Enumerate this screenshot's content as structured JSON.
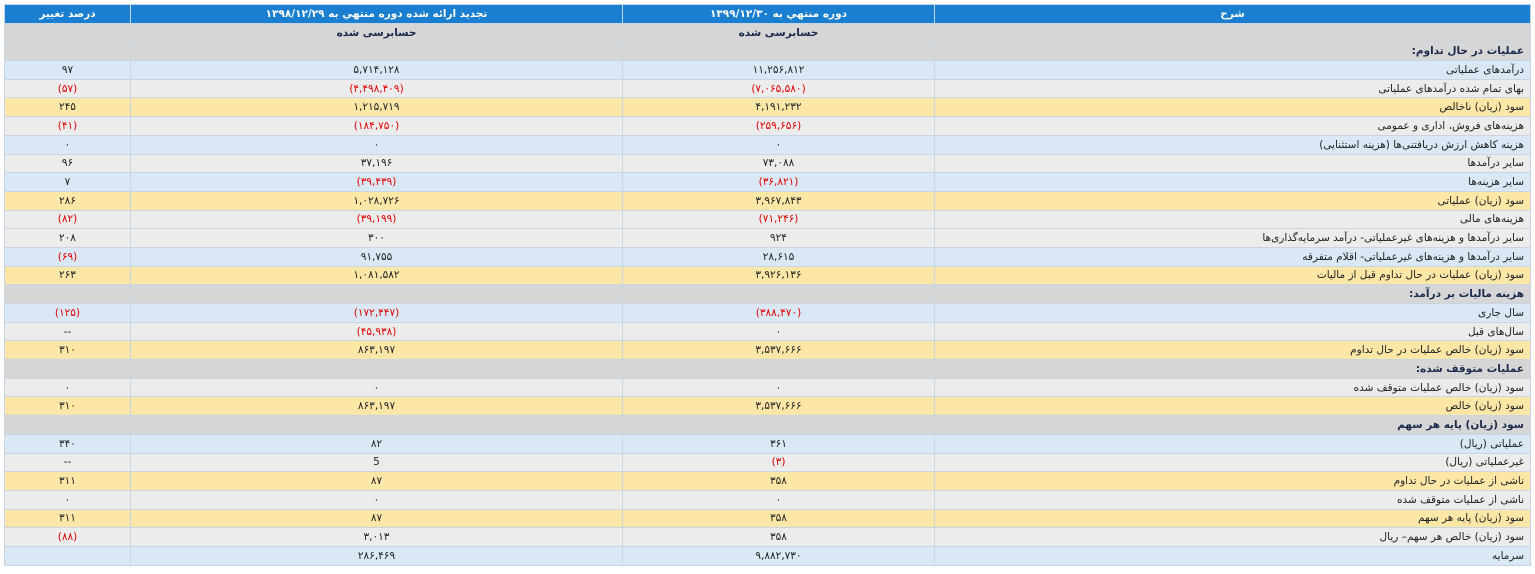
{
  "header": {
    "desc": "شرح",
    "cur_period": "دوره منتهي به ۱۳۹۹/۱۲/۳۰",
    "prev_period": "تجدید ارائه شده دوره منتهي به ۱۳۹۸/۱۲/۲۹",
    "pct": "درصد تغییر",
    "cur_status": "حسابرسی شده",
    "prev_status": "حسابرسی شده"
  },
  "rows": [
    {
      "type": "section",
      "label": "عملیات در حال تداوم:"
    },
    {
      "type": "data",
      "style": "blue",
      "label": "درآمدهای عملیاتی",
      "cur": "۱۱,۲۵۶,۸۱۲",
      "prev": "۵,۷۱۴,۱۲۸",
      "pct": "۹۷"
    },
    {
      "type": "data",
      "style": "gray",
      "label": "بهای تمام شده درآمدهای عملیاتی",
      "cur": "(۷,۰۶۵,۵۸۰)",
      "prev": "(۴,۴۹۸,۴۰۹)",
      "pct": "(۵۷)"
    },
    {
      "type": "data",
      "style": "yellow",
      "label": "سود (زیان) ناخالص",
      "cur": "۴,۱۹۱,۲۳۲",
      "prev": "۱,۲۱۵,۷۱۹",
      "pct": "۲۴۵"
    },
    {
      "type": "data",
      "style": "gray",
      "label": "هزینه‌های فروش، اداری و عمومی",
      "cur": "(۲۵۹,۶۵۶)",
      "prev": "(۱۸۴,۷۵۰)",
      "pct": "(۴۱)"
    },
    {
      "type": "data",
      "style": "blue",
      "label": "هزینه کاهش ارزش دریافتنی‌ها (هزینه استثنایی)",
      "cur": "۰",
      "prev": "۰",
      "pct": "۰"
    },
    {
      "type": "data",
      "style": "gray",
      "label": "سایر درآمدها",
      "cur": "۷۳,۰۸۸",
      "prev": "۳۷,۱۹۶",
      "pct": "۹۶"
    },
    {
      "type": "data",
      "style": "blue",
      "label": "سایر هزینه‌ها",
      "cur": "(۳۶,۸۲۱)",
      "prev": "(۳۹,۴۳۹)",
      "pct": "۷"
    },
    {
      "type": "data",
      "style": "yellow",
      "label": "سود (زیان) عملیاتی",
      "cur": "۳,۹۶۷,۸۴۳",
      "prev": "۱,۰۲۸,۷۲۶",
      "pct": "۲۸۶"
    },
    {
      "type": "data",
      "style": "gray",
      "label": "هزینه‌های مالی",
      "cur": "(۷۱,۲۴۶)",
      "prev": "(۳۹,۱۹۹)",
      "pct": "(۸۲)"
    },
    {
      "type": "data",
      "style": "gray",
      "label": "سایر درآمدها و هزینه‌های غیرعملیاتی- درآمد سرمایه‌گذاری‌ها",
      "cur": "۹۲۴",
      "prev": "۳۰۰",
      "pct": "۲۰۸"
    },
    {
      "type": "data",
      "style": "blue",
      "label": "سایر درآمدها و هزینه‌های غیرعملیاتی- اقلام متفرقه",
      "cur": "۲۸,۶۱۵",
      "prev": "۹۱,۷۵۵",
      "pct": "(۶۹)"
    },
    {
      "type": "data",
      "style": "yellow",
      "label": "سود (زیان) عملیات در حال تداوم قبل از مالیات",
      "cur": "۳,۹۲۶,۱۳۶",
      "prev": "۱,۰۸۱,۵۸۲",
      "pct": "۲۶۳"
    },
    {
      "type": "section",
      "label": "هزینه مالیات بر درآمد:"
    },
    {
      "type": "data",
      "style": "blue",
      "label": "سال جاری",
      "cur": "(۳۸۸,۴۷۰)",
      "prev": "(۱۷۲,۴۴۷)",
      "pct": "(۱۲۵)"
    },
    {
      "type": "data",
      "style": "gray",
      "label": "سال‌های قبل",
      "cur": "۰",
      "prev": "(۴۵,۹۳۸)",
      "pct": "--"
    },
    {
      "type": "data",
      "style": "yellow",
      "label": "سود (زیان) خالص عملیات در حال تداوم",
      "cur": "۳,۵۳۷,۶۶۶",
      "prev": "۸۶۳,۱۹۷",
      "pct": "۳۱۰"
    },
    {
      "type": "section",
      "label": "عملیات متوقف شده:"
    },
    {
      "type": "data",
      "style": "gray",
      "label": "سود (زیان) خالص عملیات متوقف شده",
      "cur": "۰",
      "prev": "۰",
      "pct": "۰"
    },
    {
      "type": "data",
      "style": "yellow",
      "label": "سود (زیان) خالص",
      "cur": "۳,۵۳۷,۶۶۶",
      "prev": "۸۶۳,۱۹۷",
      "pct": "۳۱۰"
    },
    {
      "type": "section",
      "label": "سود (زیان) پایه هر سهم"
    },
    {
      "type": "data",
      "style": "blue",
      "label": "عملیاتی (ریال)",
      "cur": "۳۶۱",
      "prev": "۸۲",
      "pct": "۳۴۰"
    },
    {
      "type": "data",
      "style": "gray",
      "label": "غیرعملیاتی (ریال)",
      "cur": "(۳)",
      "prev": "5",
      "pct": "--"
    },
    {
      "type": "data",
      "style": "yellow",
      "label": "ناشی از عملیات در حال تداوم",
      "cur": "۳۵۸",
      "prev": "۸۷",
      "pct": "۳۱۱"
    },
    {
      "type": "data",
      "style": "gray",
      "label": "ناشی از عملیات متوقف شده",
      "cur": "۰",
      "prev": "۰",
      "pct": "۰"
    },
    {
      "type": "data",
      "style": "yellow",
      "label": "سود (زیان) پایه هر سهم",
      "cur": "۳۵۸",
      "prev": "۸۷",
      "pct": "۳۱۱"
    },
    {
      "type": "data",
      "style": "gray",
      "label": "سود (زیان) خالص هر سهم– ریال",
      "cur": "۳۵۸",
      "prev": "۳,۰۱۳",
      "pct": "(۸۸)"
    },
    {
      "type": "data",
      "style": "blue",
      "label": "سرمایه",
      "cur": "۹,۸۸۲,۷۳۰",
      "prev": "۲۸۶,۴۶۹",
      "pct": ""
    }
  ],
  "colors": {
    "header": "#1b7fd1",
    "section": "#d6d6d6",
    "blue": "#dae8f6",
    "gray": "#ececec",
    "yellow": "#fde7a6",
    "negative": "#e00000"
  }
}
